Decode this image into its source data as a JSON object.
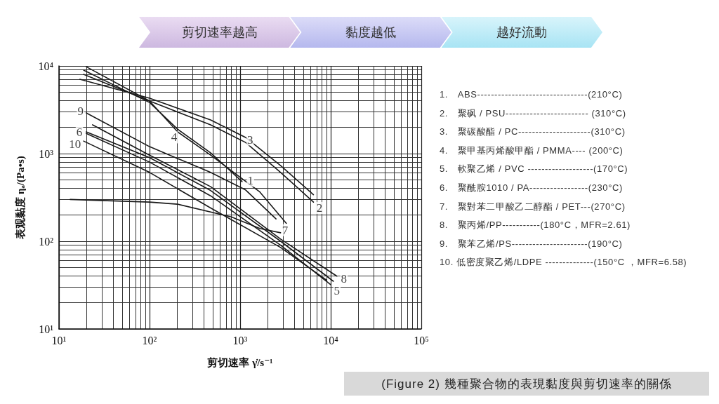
{
  "chart_data": {
    "type": "line",
    "xlabel": "剪切速率 γ̇/s⁻¹",
    "ylabel": "表观黏度 ηₐ/(Pa•s)",
    "log": "xy",
    "grid": true,
    "marker": "none",
    "line_style": "solid",
    "xlim": [
      10,
      100000
    ],
    "xticks": [
      {
        "value": 10,
        "label": "10¹"
      },
      {
        "value": 100,
        "label": "10²"
      },
      {
        "value": 1000,
        "label": "10³"
      },
      {
        "value": 10000,
        "label": "10⁴"
      },
      {
        "value": 100000,
        "label": "10⁵"
      }
    ],
    "ylim": [
      10,
      10000
    ],
    "yticks": [
      {
        "value": 10,
        "label": "10¹"
      },
      {
        "value": 100,
        "label": "10²"
      },
      {
        "value": 1000,
        "label": "10³"
      },
      {
        "value": 10000,
        "label": "10⁴"
      }
    ],
    "series": [
      {
        "color": "#1a1a1a",
        "x": [
          18.7,
          100,
          204,
          472,
          1050
        ],
        "values": [
          8950,
          3830,
          1900,
          1020,
          480
        ]
      },
      {
        "color": "#1a1a1a",
        "x": [
          18.7,
          100,
          472,
          1150,
          2800,
          6450
        ],
        "values": [
          8000,
          3980,
          2130,
          1340,
          610,
          280
        ]
      },
      {
        "color": "#1a1a1a",
        "x": [
          17,
          100,
          472,
          1150,
          2800,
          6450
        ],
        "values": [
          7050,
          4290,
          2420,
          1530,
          730,
          340
        ]
      },
      {
        "color": "#1a1a1a",
        "x": [
          20,
          100,
          204,
          472,
          1650,
          3240
        ],
        "values": [
          9800,
          3980,
          1770,
          960,
          365,
          160
        ]
      },
      {
        "color": "#1a1a1a",
        "x": [
          20,
          100,
          472,
          2800,
          10000
        ],
        "values": [
          1700,
          800,
          330,
          90,
          32
        ]
      },
      {
        "color": "#1a1a1a",
        "x": [
          20,
          100,
          472,
          2800,
          10700
        ],
        "values": [
          1770,
          900,
          380,
          100,
          35
        ]
      },
      {
        "color": "#1a1a1a",
        "x": [
          13.3,
          100,
          204,
          800,
          1650,
          2800
        ],
        "values": [
          300,
          280,
          265,
          190,
          140,
          125
        ]
      },
      {
        "color": "#1a1a1a",
        "x": [
          23.5,
          100,
          472,
          2800,
          11700
        ],
        "values": [
          2130,
          960,
          420,
          106,
          40
        ]
      },
      {
        "color": "#1a1a1a",
        "x": [
          20,
          100,
          472,
          1150,
          2490
        ],
        "values": [
          2910,
          1200,
          610,
          385,
          180
        ]
      },
      {
        "color": "#1a1a1a",
        "x": [
          18.7,
          100,
          472,
          2800,
          9000
        ],
        "values": [
          1390,
          610,
          240,
          85,
          36
        ]
      }
    ],
    "annotations": [
      "剪切速率越高",
      "黏度越低",
      "越好流動",
      "1.　ABS--------------------------------(210°C)",
      "2.　聚砜 / PSU------------------------ (310°C)",
      "3.　聚碳酸酯 / PC---------------------(310°C)",
      "4.　聚甲基丙烯酸甲酯 / PMMA---- (200°C)",
      "5.　軟聚乙烯 / PVC -------------------(170°C)",
      "6.　聚酰胺1010 / PA-----------------(230°C)",
      "7.　聚對苯二甲酸乙二醇酯 / PET---(270°C)",
      "8.　聚丙烯/PP-----------(180°C，MFR=2.61)",
      "9.　聚苯乙烯/PS----------------------(190°C)",
      "10. 低密度聚乙烯/LDPE --------------(150°C ，MFR=6.58)",
      "(Figure 2)  幾種聚合物的表現黏度與剪切速率的關係",
      {
        "text": "1",
        "x": 1300,
        "y": 490
      },
      {
        "text": "2",
        "x": 7500,
        "y": 240
      },
      {
        "text": "3",
        "x": 1290,
        "y": 1445
      },
      {
        "text": "4",
        "x": 187,
        "y": 1530
      },
      {
        "text": "5",
        "x": 11700,
        "y": 27.5
      },
      {
        "text": "6",
        "x": 16.8,
        "y": 1770
      },
      {
        "text": "7",
        "x": 3130,
        "y": 134
      },
      {
        "text": "8",
        "x": 14000,
        "y": 37
      },
      {
        "text": "9",
        "x": 17.3,
        "y": 3020
      },
      {
        "text": "10",
        "x": 15,
        "y": 1290
      }
    ]
  }
}
